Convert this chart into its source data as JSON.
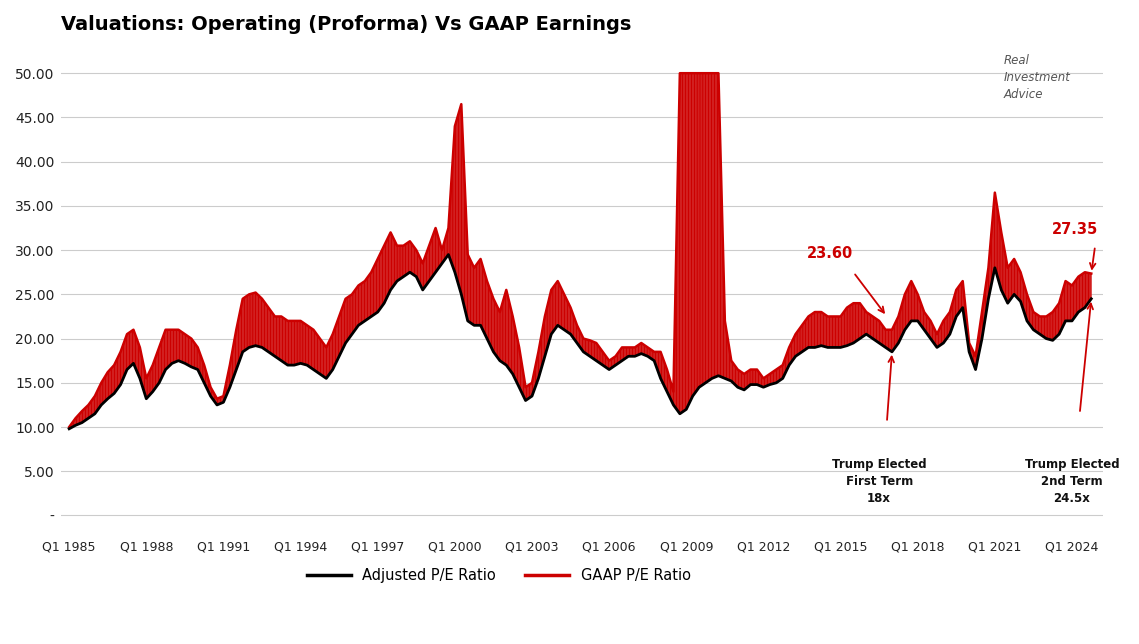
{
  "title": "Valuations: Operating (Proforma) Vs GAAP Earnings",
  "background_color": "#ffffff",
  "adjusted_color": "#000000",
  "gaap_color": "#cc0000",
  "yticks": [
    0,
    5,
    10,
    15,
    20,
    25,
    30,
    35,
    40,
    45,
    50
  ],
  "ylim": [
    -2,
    53
  ],
  "xtick_positions": [
    1985.0,
    1988.0,
    1991.0,
    1994.0,
    1997.0,
    2000.0,
    2003.0,
    2006.0,
    2009.0,
    2012.0,
    2015.0,
    2018.0,
    2021.0,
    2024.0
  ],
  "xtick_labels": [
    "Q1 1985",
    "Q1 1988",
    "Q1 1991",
    "Q1 1994",
    "Q1 1997",
    "Q1 2000",
    "Q1 2003",
    "Q1 2006",
    "Q1 2009",
    "Q1 2012",
    "Q1 2015",
    "Q1 2018",
    "Q1 2021",
    "Q1 2024"
  ],
  "quarters": [
    1985.0,
    1985.25,
    1985.5,
    1985.75,
    1986.0,
    1986.25,
    1986.5,
    1986.75,
    1987.0,
    1987.25,
    1987.5,
    1987.75,
    1988.0,
    1988.25,
    1988.5,
    1988.75,
    1989.0,
    1989.25,
    1989.5,
    1989.75,
    1990.0,
    1990.25,
    1990.5,
    1990.75,
    1991.0,
    1991.25,
    1991.5,
    1991.75,
    1992.0,
    1992.25,
    1992.5,
    1992.75,
    1993.0,
    1993.25,
    1993.5,
    1993.75,
    1994.0,
    1994.25,
    1994.5,
    1994.75,
    1995.0,
    1995.25,
    1995.5,
    1995.75,
    1996.0,
    1996.25,
    1996.5,
    1996.75,
    1997.0,
    1997.25,
    1997.5,
    1997.75,
    1998.0,
    1998.25,
    1998.5,
    1998.75,
    1999.0,
    1999.25,
    1999.5,
    1999.75,
    2000.0,
    2000.25,
    2000.5,
    2000.75,
    2001.0,
    2001.25,
    2001.5,
    2001.75,
    2002.0,
    2002.25,
    2002.5,
    2002.75,
    2003.0,
    2003.25,
    2003.5,
    2003.75,
    2004.0,
    2004.25,
    2004.5,
    2004.75,
    2005.0,
    2005.25,
    2005.5,
    2005.75,
    2006.0,
    2006.25,
    2006.5,
    2006.75,
    2007.0,
    2007.25,
    2007.5,
    2007.75,
    2008.0,
    2008.25,
    2008.5,
    2008.75,
    2009.0,
    2009.25,
    2009.5,
    2009.75,
    2010.0,
    2010.25,
    2010.5,
    2010.75,
    2011.0,
    2011.25,
    2011.5,
    2011.75,
    2012.0,
    2012.25,
    2012.5,
    2012.75,
    2013.0,
    2013.25,
    2013.5,
    2013.75,
    2014.0,
    2014.25,
    2014.5,
    2014.75,
    2015.0,
    2015.25,
    2015.5,
    2015.75,
    2016.0,
    2016.25,
    2016.5,
    2016.75,
    2017.0,
    2017.25,
    2017.5,
    2017.75,
    2018.0,
    2018.25,
    2018.5,
    2018.75,
    2019.0,
    2019.25,
    2019.5,
    2019.75,
    2020.0,
    2020.25,
    2020.5,
    2020.75,
    2021.0,
    2021.25,
    2021.5,
    2021.75,
    2022.0,
    2022.25,
    2022.5,
    2022.75,
    2023.0,
    2023.25,
    2023.5,
    2023.75,
    2024.0,
    2024.25,
    2024.5,
    2024.75
  ],
  "adjusted_pe": [
    9.8,
    10.2,
    10.5,
    11.0,
    11.5,
    12.5,
    13.2,
    13.8,
    14.8,
    16.5,
    17.2,
    15.5,
    13.2,
    14.0,
    15.0,
    16.5,
    17.2,
    17.5,
    17.2,
    16.8,
    16.5,
    15.0,
    13.5,
    12.5,
    12.8,
    14.5,
    16.5,
    18.5,
    19.0,
    19.2,
    19.0,
    18.5,
    18.0,
    17.5,
    17.0,
    17.0,
    17.2,
    17.0,
    16.5,
    16.0,
    15.5,
    16.5,
    18.0,
    19.5,
    20.5,
    21.5,
    22.0,
    22.5,
    23.0,
    24.0,
    25.5,
    26.5,
    27.0,
    27.5,
    27.0,
    25.5,
    26.5,
    27.5,
    28.5,
    29.5,
    27.5,
    25.0,
    22.0,
    21.5,
    21.5,
    20.0,
    18.5,
    17.5,
    17.0,
    16.0,
    14.5,
    13.0,
    13.5,
    15.5,
    18.0,
    20.5,
    21.5,
    21.0,
    20.5,
    19.5,
    18.5,
    18.0,
    17.5,
    17.0,
    16.5,
    17.0,
    17.5,
    18.0,
    18.0,
    18.3,
    18.0,
    17.5,
    15.5,
    14.0,
    12.5,
    11.5,
    12.0,
    13.5,
    14.5,
    15.0,
    15.5,
    15.8,
    15.5,
    15.2,
    14.5,
    14.2,
    14.8,
    14.8,
    14.5,
    14.8,
    15.0,
    15.5,
    17.0,
    18.0,
    18.5,
    19.0,
    19.0,
    19.2,
    19.0,
    19.0,
    19.0,
    19.2,
    19.5,
    20.0,
    20.5,
    20.0,
    19.5,
    19.0,
    18.5,
    19.5,
    21.0,
    22.0,
    22.0,
    21.0,
    20.0,
    19.0,
    19.5,
    20.5,
    22.5,
    23.5,
    18.5,
    16.5,
    20.0,
    24.5,
    28.0,
    25.5,
    24.0,
    25.0,
    24.2,
    22.0,
    21.0,
    20.5,
    20.0,
    19.8,
    20.5,
    22.0,
    22.0,
    23.0,
    23.5,
    24.5
  ],
  "gaap_pe": [
    10.0,
    11.0,
    11.8,
    12.5,
    13.5,
    15.0,
    16.2,
    17.0,
    18.5,
    20.5,
    21.0,
    19.0,
    15.5,
    17.0,
    19.0,
    21.0,
    21.0,
    21.0,
    20.5,
    20.0,
    19.0,
    17.0,
    14.5,
    13.2,
    13.5,
    17.0,
    21.0,
    24.5,
    25.0,
    25.2,
    24.5,
    23.5,
    22.5,
    22.5,
    22.0,
    22.0,
    22.0,
    21.5,
    21.0,
    20.0,
    19.0,
    20.5,
    22.5,
    24.5,
    25.0,
    26.0,
    26.5,
    27.5,
    29.0,
    30.5,
    32.0,
    30.5,
    30.5,
    31.0,
    30.0,
    28.5,
    30.5,
    32.5,
    30.0,
    32.5,
    44.0,
    46.5,
    29.5,
    28.0,
    29.0,
    26.5,
    24.5,
    23.0,
    25.5,
    22.5,
    19.0,
    14.5,
    15.0,
    18.5,
    22.5,
    25.5,
    26.5,
    25.0,
    23.5,
    21.5,
    20.0,
    19.8,
    19.5,
    18.5,
    17.5,
    18.0,
    19.0,
    19.0,
    19.0,
    19.5,
    19.0,
    18.5,
    18.5,
    16.5,
    14.0,
    50.0,
    50.0,
    50.0,
    50.0,
    50.0,
    50.0,
    50.0,
    22.0,
    17.5,
    16.5,
    16.0,
    16.5,
    16.5,
    15.5,
    16.0,
    16.5,
    17.0,
    19.0,
    20.5,
    21.5,
    22.5,
    23.0,
    23.0,
    22.5,
    22.5,
    22.5,
    23.5,
    24.0,
    24.0,
    23.0,
    22.5,
    22.0,
    21.0,
    21.0,
    22.5,
    25.0,
    26.5,
    25.0,
    23.0,
    22.0,
    20.5,
    22.0,
    23.0,
    25.5,
    26.5,
    19.5,
    18.0,
    23.0,
    28.0,
    36.5,
    32.0,
    28.0,
    29.0,
    27.5,
    25.0,
    23.0,
    22.5,
    22.5,
    23.0,
    24.0,
    26.5,
    26.0,
    27.0,
    27.5,
    27.35
  ]
}
